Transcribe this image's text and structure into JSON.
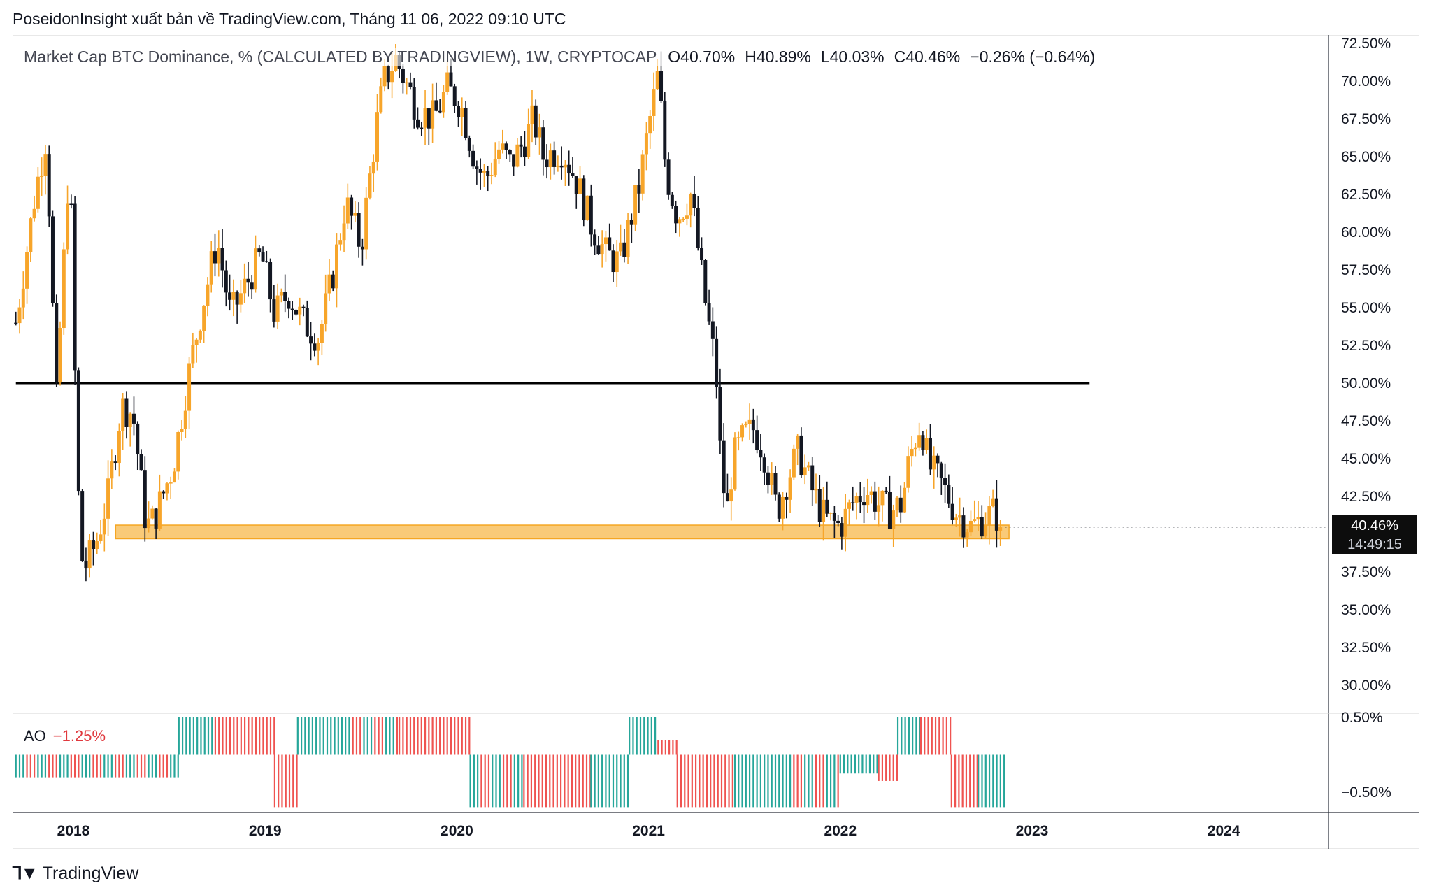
{
  "header": {
    "publisher_line": "PoseidonInsight xuất bản về TradingView.com, Tháng 11 06, 2022 09:10 UTC"
  },
  "legend": {
    "symbol": "Market Cap BTC Dominance, % (CALCULATED BY TRADINGVIEW), 1W, CRYPTOCAP",
    "open": "O40.70%",
    "high": "H40.89%",
    "low": "L40.03%",
    "close": "C40.46%",
    "change": "−0.26% (−0.64%)"
  },
  "price_tag": {
    "value": "40.46%",
    "countdown": "14:49:15"
  },
  "indicator": {
    "name": "AO",
    "value": "−1.25%"
  },
  "footer": {
    "brand": "TradingView",
    "logo_icon": "tradingview-logo-icon"
  },
  "colors": {
    "up": "#f7a52a",
    "down": "#131722",
    "support_zone": "#f7b84b",
    "resistance_line": "#000000",
    "ao_green": "#26a69a",
    "ao_red": "#ef5350",
    "ao_value": "#e0393e"
  },
  "chart_data": [
    {
      "type": "candlestick",
      "title": "Market Cap BTC Dominance, % (CALCULATED BY TRADINGVIEW), 1W, CRYPTOCAP",
      "x_tick_labels": [
        "2018",
        "2019",
        "2020",
        "2021",
        "2022",
        "2023",
        "2024"
      ],
      "y_tick_labels": [
        "72.50%",
        "70.00%",
        "67.50%",
        "65.00%",
        "62.50%",
        "60.00%",
        "57.50%",
        "55.00%",
        "52.50%",
        "50.00%",
        "47.50%",
        "45.00%",
        "42.50%",
        "37.50%",
        "35.00%",
        "32.50%",
        "30.00%"
      ],
      "ylim": [
        28.0,
        73.0
      ],
      "xlim": [
        2017.7,
        2024.7
      ],
      "grid": false,
      "keypoints": [
        {
          "t": 2017.7,
          "v": 54.0
        },
        {
          "t": 2017.8,
          "v": 62.5
        },
        {
          "t": 2017.86,
          "v": 66.5
        },
        {
          "t": 2017.91,
          "v": 48.5
        },
        {
          "t": 2017.98,
          "v": 65.5
        },
        {
          "t": 2018.02,
          "v": 44.0
        },
        {
          "t": 2018.05,
          "v": 37.5
        },
        {
          "t": 2018.12,
          "v": 39.5
        },
        {
          "t": 2018.18,
          "v": 42.5
        },
        {
          "t": 2018.25,
          "v": 48.5
        },
        {
          "t": 2018.31,
          "v": 48.0
        },
        {
          "t": 2018.38,
          "v": 40.5
        },
        {
          "t": 2018.42,
          "v": 41.0
        },
        {
          "t": 2018.52,
          "v": 44.5
        },
        {
          "t": 2018.6,
          "v": 50.5
        },
        {
          "t": 2018.67,
          "v": 55.0
        },
        {
          "t": 2018.75,
          "v": 59.5
        },
        {
          "t": 2018.82,
          "v": 54.5
        },
        {
          "t": 2018.9,
          "v": 56.5
        },
        {
          "t": 2018.98,
          "v": 58.5
        },
        {
          "t": 2019.05,
          "v": 54.5
        },
        {
          "t": 2019.12,
          "v": 56.0
        },
        {
          "t": 2019.2,
          "v": 54.0
        },
        {
          "t": 2019.28,
          "v": 53.0
        },
        {
          "t": 2019.35,
          "v": 57.0
        },
        {
          "t": 2019.42,
          "v": 62.0
        },
        {
          "t": 2019.5,
          "v": 59.0
        },
        {
          "t": 2019.58,
          "v": 67.0
        },
        {
          "t": 2019.62,
          "v": 70.0
        },
        {
          "t": 2019.68,
          "v": 71.5
        },
        {
          "t": 2019.73,
          "v": 70.0
        },
        {
          "t": 2019.8,
          "v": 68.0
        },
        {
          "t": 2019.88,
          "v": 67.5
        },
        {
          "t": 2019.95,
          "v": 69.5
        },
        {
          "t": 2020.02,
          "v": 68.5
        },
        {
          "t": 2020.1,
          "v": 64.5
        },
        {
          "t": 2020.15,
          "v": 63.5
        },
        {
          "t": 2020.22,
          "v": 65.5
        },
        {
          "t": 2020.28,
          "v": 64.5
        },
        {
          "t": 2020.35,
          "v": 66.0
        },
        {
          "t": 2020.4,
          "v": 67.5
        },
        {
          "t": 2020.45,
          "v": 65.0
        },
        {
          "t": 2020.55,
          "v": 65.5
        },
        {
          "t": 2020.62,
          "v": 63.5
        },
        {
          "t": 2020.7,
          "v": 60.5
        },
        {
          "t": 2020.78,
          "v": 58.5
        },
        {
          "t": 2020.85,
          "v": 58.0
        },
        {
          "t": 2020.95,
          "v": 63.0
        },
        {
          "t": 2021.0,
          "v": 67.0
        },
        {
          "t": 2021.05,
          "v": 70.5
        },
        {
          "t": 2021.09,
          "v": 64.0
        },
        {
          "t": 2021.15,
          "v": 61.0
        },
        {
          "t": 2021.22,
          "v": 62.5
        },
        {
          "t": 2021.3,
          "v": 55.0
        },
        {
          "t": 2021.35,
          "v": 51.0
        },
        {
          "t": 2021.38,
          "v": 44.0
        },
        {
          "t": 2021.41,
          "v": 41.5
        },
        {
          "t": 2021.44,
          "v": 45.0
        },
        {
          "t": 2021.5,
          "v": 46.5
        },
        {
          "t": 2021.55,
          "v": 47.0
        },
        {
          "t": 2021.6,
          "v": 45.5
        },
        {
          "t": 2021.67,
          "v": 41.5
        },
        {
          "t": 2021.72,
          "v": 43.5
        },
        {
          "t": 2021.78,
          "v": 45.5
        },
        {
          "t": 2021.85,
          "v": 43.0
        },
        {
          "t": 2021.92,
          "v": 41.0
        },
        {
          "t": 2022.0,
          "v": 40.5
        },
        {
          "t": 2022.06,
          "v": 42.0
        },
        {
          "t": 2022.13,
          "v": 43.0
        },
        {
          "t": 2022.2,
          "v": 42.0
        },
        {
          "t": 2022.26,
          "v": 41.5
        },
        {
          "t": 2022.32,
          "v": 42.0
        },
        {
          "t": 2022.36,
          "v": 45.0
        },
        {
          "t": 2022.42,
          "v": 47.5
        },
        {
          "t": 2022.46,
          "v": 44.5
        },
        {
          "t": 2022.52,
          "v": 43.5
        },
        {
          "t": 2022.6,
          "v": 41.5
        },
        {
          "t": 2022.68,
          "v": 40.5
        },
        {
          "t": 2022.74,
          "v": 41.0
        },
        {
          "t": 2022.8,
          "v": 41.5
        },
        {
          "t": 2022.85,
          "v": 40.5
        }
      ],
      "resistance_level": 50.0,
      "support_zone": {
        "from": 39.7,
        "to": 40.6,
        "start": 2018.22,
        "end": 2022.88
      },
      "resistance_start": 2017.7,
      "resistance_end": 2023.3,
      "last_price": 40.46
    },
    {
      "type": "bar",
      "title": "AO",
      "y_tick_labels": [
        "0.50%",
        "−0.50%"
      ],
      "ylim": [
        -0.8,
        0.5
      ],
      "segments": [
        {
          "start": 2017.7,
          "end": 2018.55,
          "value": -0.3,
          "pattern": "mix"
        },
        {
          "start": 2018.55,
          "end": 2018.74,
          "value": 0.5,
          "pattern": "green"
        },
        {
          "start": 2018.74,
          "end": 2019.05,
          "value": 0.5,
          "pattern": "red"
        },
        {
          "start": 2019.05,
          "end": 2019.17,
          "value": -0.7,
          "pattern": "red"
        },
        {
          "start": 2019.17,
          "end": 2019.4,
          "value": 0.5,
          "pattern": "green"
        },
        {
          "start": 2019.4,
          "end": 2019.7,
          "value": 0.5,
          "pattern": "mix"
        },
        {
          "start": 2019.7,
          "end": 2020.07,
          "value": 0.5,
          "pattern": "red"
        },
        {
          "start": 2020.07,
          "end": 2020.35,
          "value": -0.7,
          "pattern": "mix"
        },
        {
          "start": 2020.35,
          "end": 2020.7,
          "value": -0.7,
          "pattern": "red"
        },
        {
          "start": 2020.7,
          "end": 2020.9,
          "value": -0.7,
          "pattern": "green"
        },
        {
          "start": 2020.9,
          "end": 2021.05,
          "value": 0.5,
          "pattern": "green"
        },
        {
          "start": 2021.05,
          "end": 2021.15,
          "value": 0.2,
          "pattern": "red"
        },
        {
          "start": 2021.15,
          "end": 2021.45,
          "value": -0.7,
          "pattern": "red"
        },
        {
          "start": 2021.45,
          "end": 2021.7,
          "value": -0.7,
          "pattern": "green"
        },
        {
          "start": 2021.7,
          "end": 2022.0,
          "value": -0.7,
          "pattern": "mix"
        },
        {
          "start": 2022.0,
          "end": 2022.2,
          "value": -0.25,
          "pattern": "green"
        },
        {
          "start": 2022.2,
          "end": 2022.3,
          "value": -0.35,
          "pattern": "red"
        },
        {
          "start": 2022.3,
          "end": 2022.42,
          "value": 0.5,
          "pattern": "green"
        },
        {
          "start": 2022.42,
          "end": 2022.58,
          "value": 0.5,
          "pattern": "red"
        },
        {
          "start": 2022.58,
          "end": 2022.72,
          "value": -0.7,
          "pattern": "red"
        },
        {
          "start": 2022.72,
          "end": 2022.86,
          "value": -0.7,
          "pattern": "green"
        }
      ]
    }
  ]
}
